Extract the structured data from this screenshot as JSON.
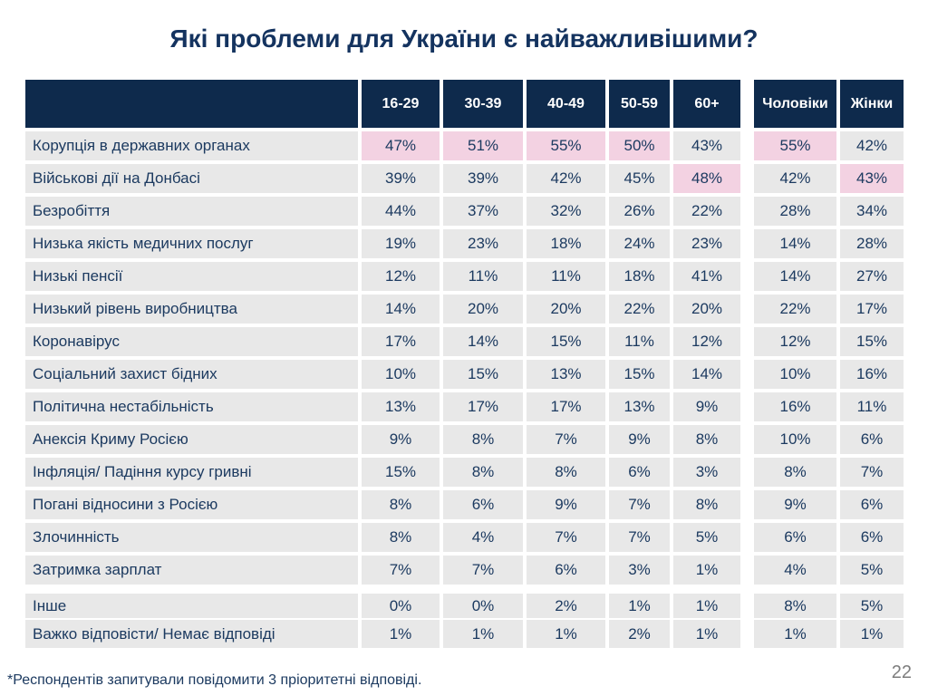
{
  "title": "Які проблеми для України є найважливішими?",
  "footnote": "*Респондентів запитували повідомити 3 пріоритетні відповіді.",
  "page_number": "22",
  "colors": {
    "header_bg": "#0e2a4c",
    "row_bg": "#e8e8e8",
    "highlight_bg": "#f3d2e2",
    "text": "#1c3a60",
    "title_text": "#14335f",
    "page_number": "#7d7d7d"
  },
  "chart_data": {
    "type": "table",
    "title": "Які проблеми для України є найважливішими?",
    "age_columns": [
      "16-29",
      "30-39",
      "40-49",
      "50-59",
      "60+"
    ],
    "gender_columns": [
      "Чоловіки",
      "Жінки"
    ],
    "rows": [
      {
        "label": "Корупція в державних органах",
        "age_values": [
          "47%",
          "51%",
          "55%",
          "50%",
          "43%"
        ],
        "gender_values": [
          "55%",
          "42%"
        ],
        "age_highlight": [
          true,
          true,
          true,
          true,
          false
        ],
        "gender_highlight": [
          true,
          false
        ]
      },
      {
        "label": "Військові дії на Донбасі",
        "age_values": [
          "39%",
          "39%",
          "42%",
          "45%",
          "48%"
        ],
        "gender_values": [
          "42%",
          "43%"
        ],
        "age_highlight": [
          false,
          false,
          false,
          false,
          true
        ],
        "gender_highlight": [
          false,
          true
        ]
      },
      {
        "label": "Безробіття",
        "age_values": [
          "44%",
          "37%",
          "32%",
          "26%",
          "22%"
        ],
        "gender_values": [
          "28%",
          "34%"
        ]
      },
      {
        "label": "Низька якість медичних послуг",
        "age_values": [
          "19%",
          "23%",
          "18%",
          "24%",
          "23%"
        ],
        "gender_values": [
          "14%",
          "28%"
        ]
      },
      {
        "label": "Низькі пенсії",
        "age_values": [
          "12%",
          "11%",
          "11%",
          "18%",
          "41%"
        ],
        "gender_values": [
          "14%",
          "27%"
        ]
      },
      {
        "label": "Низький рівень виробництва",
        "age_values": [
          "14%",
          "20%",
          "20%",
          "22%",
          "20%"
        ],
        "gender_values": [
          "22%",
          "17%"
        ]
      },
      {
        "label": "Коронавірус",
        "age_values": [
          "17%",
          "14%",
          "15%",
          "11%",
          "12%"
        ],
        "gender_values": [
          "12%",
          "15%"
        ]
      },
      {
        "label": "Соціальний захист бідних",
        "age_values": [
          "10%",
          "15%",
          "13%",
          "15%",
          "14%"
        ],
        "gender_values": [
          "10%",
          "16%"
        ]
      },
      {
        "label": "Політична нестабільність",
        "age_values": [
          "13%",
          "17%",
          "17%",
          "13%",
          "9%"
        ],
        "gender_values": [
          "16%",
          "11%"
        ]
      },
      {
        "label": "Анексія Криму Росією",
        "age_values": [
          "9%",
          "8%",
          "7%",
          "9%",
          "8%"
        ],
        "gender_values": [
          "10%",
          "6%"
        ]
      },
      {
        "label": "Інфляція/ Падіння курсу гривні",
        "age_values": [
          "15%",
          "8%",
          "8%",
          "6%",
          "3%"
        ],
        "gender_values": [
          "8%",
          "7%"
        ]
      },
      {
        "label": "Погані відносини з Росією",
        "age_values": [
          "8%",
          "6%",
          "9%",
          "7%",
          "8%"
        ],
        "gender_values": [
          "9%",
          "6%"
        ]
      },
      {
        "label": "Злочинність",
        "age_values": [
          "8%",
          "4%",
          "7%",
          "7%",
          "5%"
        ],
        "gender_values": [
          "6%",
          "6%"
        ]
      },
      {
        "label": "Затримка зарплат",
        "age_values": [
          "7%",
          "7%",
          "6%",
          "3%",
          "1%"
        ],
        "gender_values": [
          "4%",
          "5%"
        ]
      },
      {
        "label": "Інше",
        "age_values": [
          "0%",
          "0%",
          "2%",
          "1%",
          "1%"
        ],
        "gender_values": [
          "8%",
          "5%"
        ],
        "section_break_before": true
      },
      {
        "label": "Важко відповісти/ Немає відповіді",
        "age_values": [
          "1%",
          "1%",
          "1%",
          "2%",
          "1%"
        ],
        "gender_values": [
          "1%",
          "1%"
        ]
      }
    ]
  }
}
